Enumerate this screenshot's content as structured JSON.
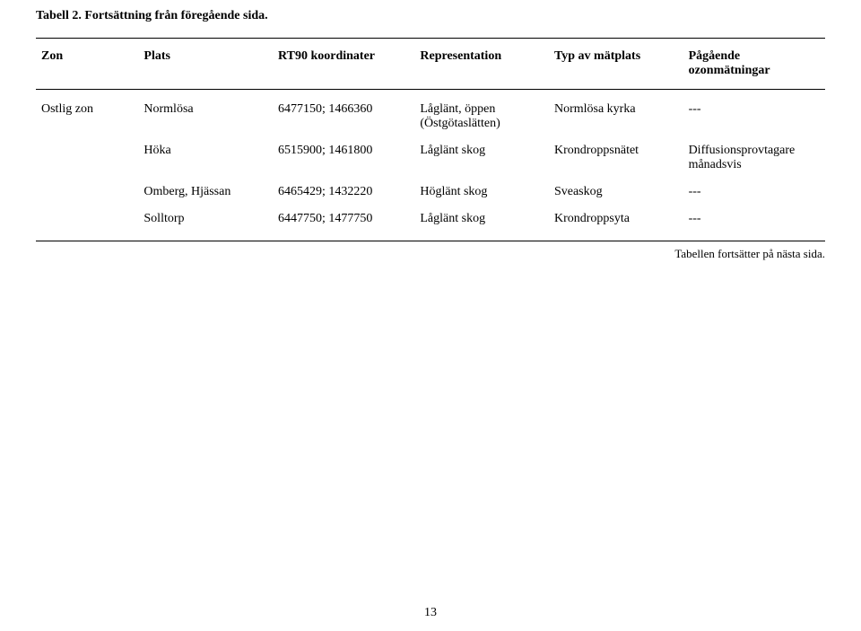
{
  "caption": "Tabell 2. Fortsättning från föregående sida.",
  "headers": {
    "zon": "Zon",
    "plats": "Plats",
    "rt90": "RT90 koordinater",
    "rep": "Representation",
    "typ": "Typ av mätplats",
    "ozon": "Pågående ozonmätningar"
  },
  "rows": [
    {
      "zon": "Ostlig zon",
      "plats": "Normlösa",
      "rt90": "6477150; 1466360",
      "rep": "Låglänt, öppen (Östgötaslätten)",
      "typ": "Normlösa kyrka",
      "ozon": "---"
    },
    {
      "zon": "",
      "plats": "Höka",
      "rt90": "6515900; 1461800",
      "rep": "Låglänt skog",
      "typ": "Krondroppsnätet",
      "ozon": "Diffusionsprovtagare månadsvis"
    },
    {
      "zon": "",
      "plats": "Omberg, Hjässan",
      "rt90": "6465429; 1432220",
      "rep": "Höglänt skog",
      "typ": "Sveaskog",
      "ozon": "---"
    },
    {
      "zon": "",
      "plats": "Solltorp",
      "rt90": "6447750; 1477750",
      "rep": "Låglänt skog",
      "typ": "Krondroppsyta",
      "ozon": "---"
    }
  ],
  "footnote": "Tabellen fortsätter på nästa sida.",
  "page_number": "13"
}
